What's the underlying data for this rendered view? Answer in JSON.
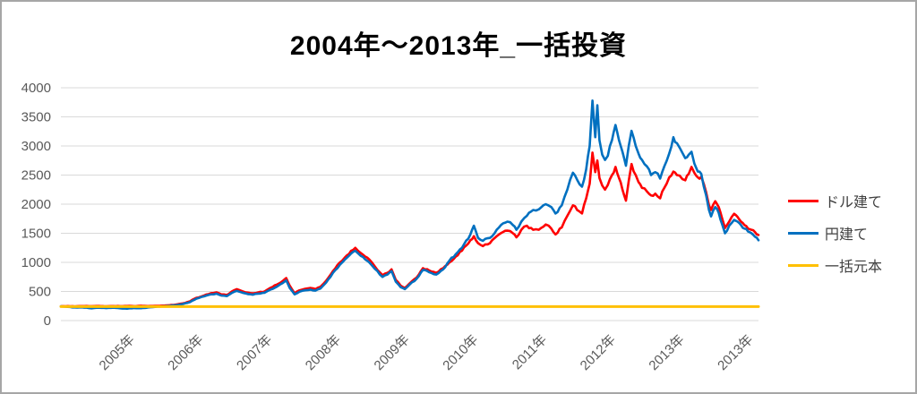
{
  "window": {
    "background_color": "#ffffff",
    "border_color": "#a6a6a6"
  },
  "chart_data": {
    "type": "line",
    "title": "2004年〜2013年_一括投資",
    "grid": true,
    "legend_position": "right",
    "y_axis": {
      "min": 0,
      "max": 4000,
      "tick_step": 500,
      "ticks": [
        0,
        500,
        1000,
        1500,
        2000,
        2500,
        3000,
        3500,
        4000
      ]
    },
    "x_axis": {
      "tick_labels": [
        "2005年",
        "2006年",
        "2007年",
        "2008年",
        "2009年",
        "2010年",
        "2011年",
        "2012年",
        "2013年",
        "2013年"
      ]
    },
    "principal_value": 240,
    "style": {
      "gridline_color": "#d9d9d9",
      "axis_label_color": "#595959",
      "title_color": "#000000",
      "volatility_texture_pct": 1.3
    },
    "series": [
      {
        "name": "ドル建て",
        "color": "#ff0000",
        "noisy": true,
        "points": [
          [
            0.0,
            245
          ],
          [
            0.01,
            250
          ],
          [
            0.02,
            244
          ],
          [
            0.03,
            250
          ],
          [
            0.044,
            247
          ],
          [
            0.055,
            252
          ],
          [
            0.065,
            246
          ],
          [
            0.075,
            250
          ],
          [
            0.085,
            248
          ],
          [
            0.095,
            252
          ],
          [
            0.105,
            248
          ],
          [
            0.115,
            255
          ],
          [
            0.125,
            250
          ],
          [
            0.135,
            253
          ],
          [
            0.146,
            257
          ],
          [
            0.155,
            262
          ],
          [
            0.165,
            275
          ],
          [
            0.175,
            295
          ],
          [
            0.185,
            330
          ],
          [
            0.194,
            390
          ],
          [
            0.205,
            430
          ],
          [
            0.215,
            470
          ],
          [
            0.223,
            485
          ],
          [
            0.23,
            450
          ],
          [
            0.238,
            440
          ],
          [
            0.245,
            500
          ],
          [
            0.252,
            540
          ],
          [
            0.26,
            505
          ],
          [
            0.268,
            480
          ],
          [
            0.275,
            468
          ],
          [
            0.283,
            485
          ],
          [
            0.292,
            500
          ],
          [
            0.3,
            560
          ],
          [
            0.31,
            620
          ],
          [
            0.318,
            680
          ],
          [
            0.323,
            730
          ],
          [
            0.328,
            600
          ],
          [
            0.335,
            468
          ],
          [
            0.342,
            520
          ],
          [
            0.35,
            545
          ],
          [
            0.358,
            560
          ],
          [
            0.365,
            540
          ],
          [
            0.372,
            580
          ],
          [
            0.38,
            680
          ],
          [
            0.39,
            850
          ],
          [
            0.4,
            1000
          ],
          [
            0.41,
            1120
          ],
          [
            0.422,
            1250
          ],
          [
            0.43,
            1160
          ],
          [
            0.442,
            1050
          ],
          [
            0.45,
            930
          ],
          [
            0.461,
            780
          ],
          [
            0.468,
            820
          ],
          [
            0.474,
            880
          ],
          [
            0.48,
            700
          ],
          [
            0.487,
            600
          ],
          [
            0.493,
            560
          ],
          [
            0.5,
            640
          ],
          [
            0.51,
            740
          ],
          [
            0.519,
            900
          ],
          [
            0.528,
            860
          ],
          [
            0.538,
            820
          ],
          [
            0.548,
            900
          ],
          [
            0.557,
            1000
          ],
          [
            0.566,
            1100
          ],
          [
            0.575,
            1200
          ],
          [
            0.587,
            1380
          ],
          [
            0.592,
            1450
          ],
          [
            0.598,
            1330
          ],
          [
            0.605,
            1280
          ],
          [
            0.615,
            1330
          ],
          [
            0.628,
            1480
          ],
          [
            0.64,
            1545
          ],
          [
            0.648,
            1500
          ],
          [
            0.653,
            1430
          ],
          [
            0.66,
            1560
          ],
          [
            0.668,
            1630
          ],
          [
            0.677,
            1560
          ],
          [
            0.685,
            1560
          ],
          [
            0.695,
            1650
          ],
          [
            0.703,
            1580
          ],
          [
            0.709,
            1480
          ],
          [
            0.718,
            1600
          ],
          [
            0.726,
            1800
          ],
          [
            0.734,
            1980
          ],
          [
            0.74,
            1900
          ],
          [
            0.747,
            1840
          ],
          [
            0.753,
            2100
          ],
          [
            0.758,
            2350
          ],
          [
            0.762,
            2886
          ],
          [
            0.766,
            2550
          ],
          [
            0.769,
            2750
          ],
          [
            0.772,
            2450
          ],
          [
            0.776,
            2320
          ],
          [
            0.78,
            2250
          ],
          [
            0.784,
            2330
          ],
          [
            0.79,
            2500
          ],
          [
            0.795,
            2640
          ],
          [
            0.8,
            2450
          ],
          [
            0.805,
            2250
          ],
          [
            0.81,
            2060
          ],
          [
            0.814,
            2400
          ],
          [
            0.818,
            2690
          ],
          [
            0.824,
            2500
          ],
          [
            0.828,
            2380
          ],
          [
            0.833,
            2280
          ],
          [
            0.84,
            2220
          ],
          [
            0.846,
            2150
          ],
          [
            0.852,
            2180
          ],
          [
            0.859,
            2100
          ],
          [
            0.865,
            2280
          ],
          [
            0.872,
            2460
          ],
          [
            0.878,
            2560
          ],
          [
            0.883,
            2500
          ],
          [
            0.887,
            2490
          ],
          [
            0.891,
            2430
          ],
          [
            0.895,
            2410
          ],
          [
            0.9,
            2520
          ],
          [
            0.904,
            2640
          ],
          [
            0.908,
            2540
          ],
          [
            0.913,
            2460
          ],
          [
            0.918,
            2470
          ],
          [
            0.925,
            2200
          ],
          [
            0.929,
            1980
          ],
          [
            0.932,
            1900
          ],
          [
            0.938,
            2050
          ],
          [
            0.943,
            1950
          ],
          [
            0.948,
            1750
          ],
          [
            0.952,
            1590
          ],
          [
            0.958,
            1700
          ],
          [
            0.965,
            1835
          ],
          [
            0.97,
            1780
          ],
          [
            0.975,
            1700
          ],
          [
            0.98,
            1640
          ],
          [
            0.985,
            1580
          ],
          [
            0.99,
            1560
          ],
          [
            0.995,
            1520
          ],
          [
            1.0,
            1470
          ]
        ]
      },
      {
        "name": "円建て",
        "color": "#0070c0",
        "noisy": true,
        "points": [
          [
            0.0,
            245
          ],
          [
            0.01,
            235
          ],
          [
            0.02,
            225
          ],
          [
            0.03,
            228
          ],
          [
            0.044,
            210
          ],
          [
            0.055,
            220
          ],
          [
            0.065,
            215
          ],
          [
            0.075,
            222
          ],
          [
            0.085,
            210
          ],
          [
            0.095,
            205
          ],
          [
            0.105,
            215
          ],
          [
            0.115,
            212
          ],
          [
            0.125,
            225
          ],
          [
            0.135,
            235
          ],
          [
            0.146,
            245
          ],
          [
            0.155,
            252
          ],
          [
            0.165,
            265
          ],
          [
            0.175,
            285
          ],
          [
            0.185,
            318
          ],
          [
            0.194,
            375
          ],
          [
            0.205,
            415
          ],
          [
            0.215,
            450
          ],
          [
            0.223,
            462
          ],
          [
            0.23,
            430
          ],
          [
            0.238,
            420
          ],
          [
            0.245,
            475
          ],
          [
            0.252,
            510
          ],
          [
            0.26,
            480
          ],
          [
            0.268,
            455
          ],
          [
            0.275,
            445
          ],
          [
            0.283,
            462
          ],
          [
            0.292,
            478
          ],
          [
            0.3,
            530
          ],
          [
            0.31,
            585
          ],
          [
            0.318,
            645
          ],
          [
            0.323,
            690
          ],
          [
            0.328,
            560
          ],
          [
            0.335,
            450
          ],
          [
            0.342,
            495
          ],
          [
            0.35,
            520
          ],
          [
            0.358,
            532
          ],
          [
            0.365,
            515
          ],
          [
            0.372,
            550
          ],
          [
            0.38,
            650
          ],
          [
            0.39,
            820
          ],
          [
            0.4,
            960
          ],
          [
            0.41,
            1080
          ],
          [
            0.422,
            1200
          ],
          [
            0.43,
            1110
          ],
          [
            0.442,
            1000
          ],
          [
            0.45,
            890
          ],
          [
            0.461,
            750
          ],
          [
            0.468,
            790
          ],
          [
            0.474,
            850
          ],
          [
            0.48,
            670
          ],
          [
            0.487,
            575
          ],
          [
            0.493,
            540
          ],
          [
            0.5,
            620
          ],
          [
            0.51,
            720
          ],
          [
            0.519,
            870
          ],
          [
            0.528,
            830
          ],
          [
            0.538,
            790
          ],
          [
            0.548,
            880
          ],
          [
            0.557,
            1030
          ],
          [
            0.566,
            1140
          ],
          [
            0.575,
            1250
          ],
          [
            0.587,
            1480
          ],
          [
            0.592,
            1630
          ],
          [
            0.598,
            1420
          ],
          [
            0.605,
            1370
          ],
          [
            0.615,
            1420
          ],
          [
            0.628,
            1600
          ],
          [
            0.64,
            1700
          ],
          [
            0.648,
            1640
          ],
          [
            0.653,
            1560
          ],
          [
            0.66,
            1700
          ],
          [
            0.668,
            1800
          ],
          [
            0.677,
            1900
          ],
          [
            0.685,
            1910
          ],
          [
            0.695,
            2000
          ],
          [
            0.703,
            1950
          ],
          [
            0.709,
            1840
          ],
          [
            0.718,
            1980
          ],
          [
            0.726,
            2250
          ],
          [
            0.734,
            2540
          ],
          [
            0.74,
            2420
          ],
          [
            0.747,
            2300
          ],
          [
            0.753,
            2600
          ],
          [
            0.758,
            3000
          ],
          [
            0.762,
            3780
          ],
          [
            0.766,
            3150
          ],
          [
            0.769,
            3700
          ],
          [
            0.772,
            3100
          ],
          [
            0.776,
            2850
          ],
          [
            0.78,
            2760
          ],
          [
            0.784,
            2830
          ],
          [
            0.79,
            3100
          ],
          [
            0.795,
            3360
          ],
          [
            0.8,
            3100
          ],
          [
            0.805,
            2900
          ],
          [
            0.81,
            2660
          ],
          [
            0.814,
            3000
          ],
          [
            0.818,
            3260
          ],
          [
            0.824,
            3000
          ],
          [
            0.828,
            2870
          ],
          [
            0.833,
            2760
          ],
          [
            0.84,
            2650
          ],
          [
            0.846,
            2500
          ],
          [
            0.852,
            2550
          ],
          [
            0.859,
            2440
          ],
          [
            0.865,
            2650
          ],
          [
            0.872,
            2870
          ],
          [
            0.878,
            3150
          ],
          [
            0.883,
            3050
          ],
          [
            0.887,
            2970
          ],
          [
            0.891,
            2880
          ],
          [
            0.895,
            2790
          ],
          [
            0.9,
            2850
          ],
          [
            0.904,
            2900
          ],
          [
            0.908,
            2700
          ],
          [
            0.913,
            2560
          ],
          [
            0.918,
            2520
          ],
          [
            0.925,
            2150
          ],
          [
            0.929,
            1900
          ],
          [
            0.932,
            1790
          ],
          [
            0.938,
            1950
          ],
          [
            0.943,
            1850
          ],
          [
            0.948,
            1650
          ],
          [
            0.952,
            1500
          ],
          [
            0.958,
            1630
          ],
          [
            0.965,
            1730
          ],
          [
            0.97,
            1700
          ],
          [
            0.975,
            1640
          ],
          [
            0.98,
            1580
          ],
          [
            0.985,
            1530
          ],
          [
            0.99,
            1500
          ],
          [
            0.995,
            1440
          ],
          [
            1.0,
            1380
          ]
        ]
      },
      {
        "name": "一括元本",
        "color": "#ffc000",
        "noisy": false,
        "points": [
          [
            0.0,
            240
          ],
          [
            1.0,
            240
          ]
        ]
      }
    ]
  }
}
